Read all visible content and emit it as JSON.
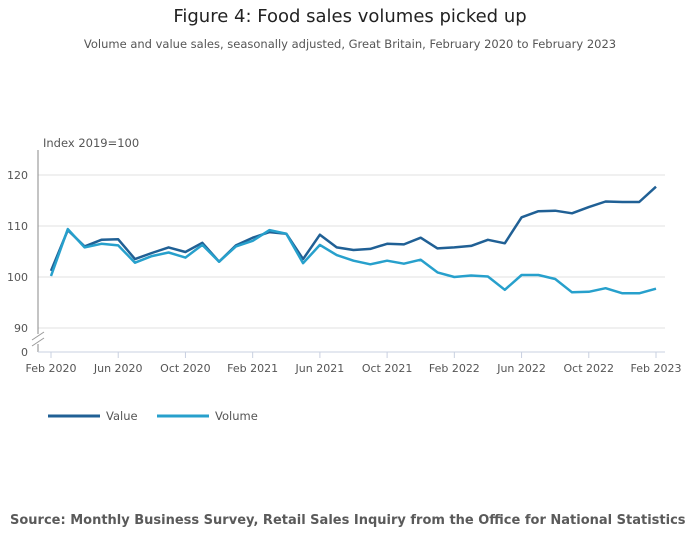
{
  "title": "Figure 4: Food sales volumes picked up",
  "subtitle": "Volume and value sales, seasonally adjusted, Great Britain, February 2020 to February 2023",
  "source": "Source: Monthly Business Survey, Retail Sales Inquiry from the Office for National Statistics",
  "chart_data": {
    "type": "line",
    "ylabel": "Index 2019=100",
    "x_start": "Feb 2020",
    "x_end": "Feb 2023",
    "x_ticks": [
      "Feb 2020",
      "Jun 2020",
      "Oct 2020",
      "Feb 2021",
      "Jun 2021",
      "Oct 2021",
      "Feb 2022",
      "Jun 2022",
      "Oct 2022",
      "Feb 2023"
    ],
    "y_ticks": [
      0,
      90,
      100,
      110,
      120
    ],
    "ylim": [
      88,
      124
    ],
    "y_axis_break": true,
    "grid": true,
    "legend_position": "bottom-left",
    "series": [
      {
        "name": "Value",
        "color": "#206095",
        "values": [
          101.2,
          109.2,
          106.0,
          107.3,
          107.4,
          103.5,
          104.7,
          105.8,
          104.9,
          106.7,
          103.0,
          106.2,
          107.7,
          108.8,
          108.5,
          103.5,
          108.3,
          105.8,
          105.3,
          105.5,
          106.5,
          106.4,
          107.7,
          105.6,
          105.8,
          106.1,
          107.3,
          106.6,
          111.7,
          112.9,
          113.0,
          112.5,
          113.7,
          114.8,
          114.7,
          114.7,
          117.7
        ]
      },
      {
        "name": "Volume",
        "color": "#27a0cc",
        "values": [
          100.2,
          109.4,
          105.8,
          106.5,
          106.2,
          102.8,
          104.1,
          104.8,
          103.8,
          106.3,
          103.0,
          106.0,
          107.1,
          109.2,
          108.5,
          102.7,
          106.3,
          104.3,
          103.2,
          102.5,
          103.2,
          102.6,
          103.4,
          100.9,
          100.0,
          100.3,
          100.1,
          97.5,
          100.4,
          100.4,
          99.6,
          97.0,
          97.1,
          97.8,
          96.8,
          96.8,
          97.7
        ]
      }
    ]
  }
}
